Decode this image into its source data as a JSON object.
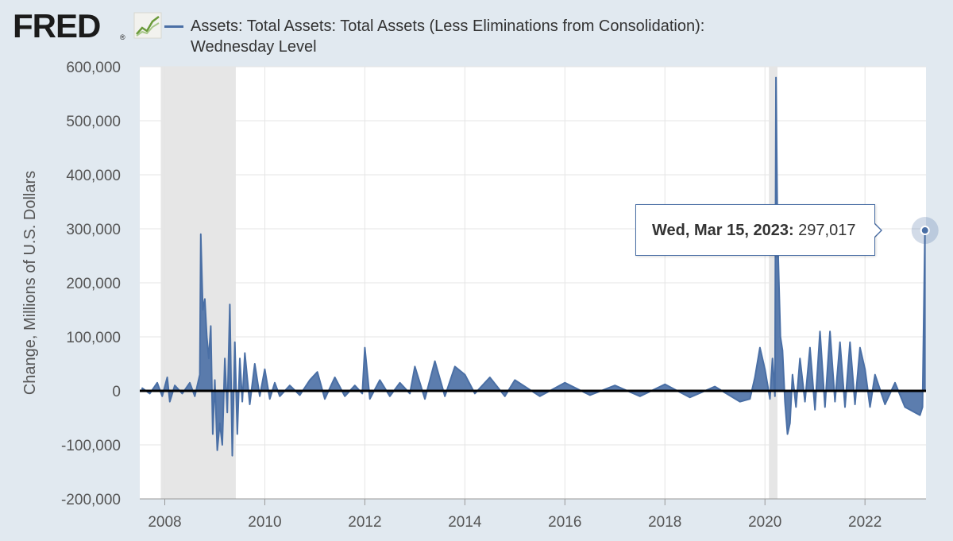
{
  "logo": {
    "text": "FRED",
    "registered": "®",
    "icon": "line-graph-icon"
  },
  "colors": {
    "background": "#e1e9f0",
    "plot_bg": "#ffffff",
    "series": "#4a6fa5",
    "recession": "#e6e6e6",
    "grid": "#e5e5e5",
    "zero_line": "#000000"
  },
  "tooltip": {
    "date": "Wed, Mar 15, 2023:",
    "value": "297,017"
  },
  "chart_data": {
    "type": "line",
    "series": [
      {
        "name": "Assets: Total Assets: Total Assets (Less Eliminations from Consolidation): Wednesday Level",
        "x": [
          2007.55,
          2007.7,
          2007.85,
          2007.95,
          2008.05,
          2008.1,
          2008.2,
          2008.35,
          2008.5,
          2008.6,
          2008.7,
          2008.72,
          2008.76,
          2008.8,
          2008.84,
          2008.88,
          2008.92,
          2008.96,
          2009.0,
          2009.05,
          2009.1,
          2009.15,
          2009.2,
          2009.25,
          2009.3,
          2009.35,
          2009.4,
          2009.45,
          2009.5,
          2009.55,
          2009.6,
          2009.7,
          2009.8,
          2009.9,
          2010.0,
          2010.1,
          2010.2,
          2010.3,
          2010.5,
          2010.7,
          2010.9,
          2011.05,
          2011.2,
          2011.4,
          2011.6,
          2011.8,
          2011.95,
          2012.0,
          2012.1,
          2012.3,
          2012.5,
          2012.7,
          2012.9,
          2013.0,
          2013.2,
          2013.4,
          2013.6,
          2013.8,
          2014.0,
          2014.2,
          2014.5,
          2014.8,
          2015.0,
          2015.5,
          2016.0,
          2016.5,
          2017.0,
          2017.5,
          2018.0,
          2018.5,
          2019.0,
          2019.5,
          2019.7,
          2019.8,
          2019.9,
          2020.0,
          2020.1,
          2020.15,
          2020.2,
          2020.22,
          2020.25,
          2020.28,
          2020.31,
          2020.35,
          2020.4,
          2020.45,
          2020.5,
          2020.55,
          2020.62,
          2020.7,
          2020.8,
          2020.9,
          2021.0,
          2021.1,
          2021.2,
          2021.3,
          2021.4,
          2021.5,
          2021.6,
          2021.7,
          2021.8,
          2021.9,
          2022.0,
          2022.1,
          2022.2,
          2022.4,
          2022.6,
          2022.8,
          2023.0,
          2023.1,
          2023.15,
          2023.2
        ],
        "values": [
          5000,
          -5000,
          15000,
          -10000,
          25000,
          -20000,
          10000,
          -5000,
          15000,
          -10000,
          30000,
          290000,
          150000,
          170000,
          100000,
          60000,
          120000,
          -80000,
          20000,
          -110000,
          -60000,
          -100000,
          60000,
          -40000,
          160000,
          -120000,
          90000,
          -80000,
          60000,
          -20000,
          70000,
          -25000,
          50000,
          -10000,
          40000,
          -15000,
          15000,
          -10000,
          10000,
          -8000,
          20000,
          35000,
          -15000,
          25000,
          -10000,
          10000,
          -5000,
          80000,
          -15000,
          20000,
          -10000,
          15000,
          -5000,
          45000,
          -15000,
          55000,
          -10000,
          45000,
          30000,
          -5000,
          25000,
          -10000,
          20000,
          -10000,
          15000,
          -8000,
          10000,
          -10000,
          12000,
          -12000,
          8000,
          -20000,
          -15000,
          25000,
          80000,
          40000,
          -15000,
          60000,
          -10000,
          580000,
          300000,
          200000,
          100000,
          75000,
          -20000,
          -80000,
          -60000,
          30000,
          -30000,
          60000,
          -20000,
          80000,
          -35000,
          110000,
          -30000,
          110000,
          -20000,
          90000,
          -30000,
          90000,
          -25000,
          80000,
          40000,
          -30000,
          30000,
          -25000,
          15000,
          -30000,
          -40000,
          -45000,
          -30000,
          297017
        ]
      }
    ],
    "xlim": [
      2007.5,
      2023.22
    ],
    "ylim": [
      -200000,
      600000
    ],
    "xticks": [
      {
        "v": 2008,
        "label": "2008"
      },
      {
        "v": 2010,
        "label": "2010"
      },
      {
        "v": 2012,
        "label": "2012"
      },
      {
        "v": 2014,
        "label": "2014"
      },
      {
        "v": 2016,
        "label": "2016"
      },
      {
        "v": 2018,
        "label": "2018"
      },
      {
        "v": 2020,
        "label": "2020"
      },
      {
        "v": 2022,
        "label": "2022"
      }
    ],
    "yticks": [
      {
        "v": 600000,
        "label": "600,000"
      },
      {
        "v": 500000,
        "label": "500,000"
      },
      {
        "v": 400000,
        "label": "400,000"
      },
      {
        "v": 300000,
        "label": "300,000"
      },
      {
        "v": 200000,
        "label": "200,000"
      },
      {
        "v": 100000,
        "label": "100,000"
      },
      {
        "v": 0,
        "label": "0"
      },
      {
        "v": -100000,
        "label": "-100,000"
      },
      {
        "v": -200000,
        "label": "-200,000"
      }
    ],
    "ylabel": "Change, Millions of U.S. Dollars",
    "recessions": [
      [
        2007.92,
        2009.42
      ],
      [
        2020.08,
        2020.25
      ]
    ],
    "highlight": {
      "x": 2023.2,
      "y": 297017
    },
    "grid": true
  }
}
